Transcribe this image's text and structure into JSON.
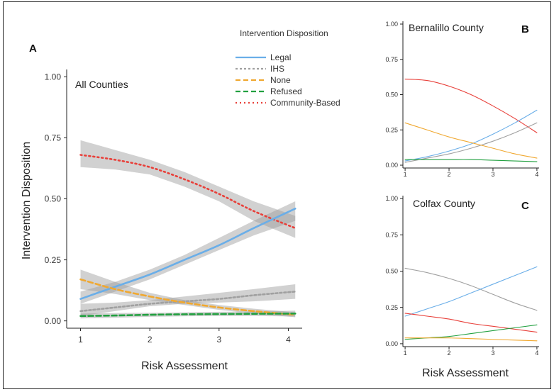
{
  "figure": {
    "legend_title": "Intervention Disposition",
    "legend": [
      {
        "label": "Legal",
        "color": "#6aaee8",
        "dash": "solid"
      },
      {
        "label": "IHS",
        "color": "#a0a0a0",
        "dash": "dotted-short"
      },
      {
        "label": "None",
        "color": "#f0a830",
        "dash": "dashed"
      },
      {
        "label": "Refused",
        "color": "#22a040",
        "dash": "dashed"
      },
      {
        "label": "Community-Based",
        "color": "#e8403a",
        "dash": "dotted"
      }
    ]
  },
  "chart_data": [
    {
      "id": "A",
      "panel_label": "A",
      "type": "line",
      "title": "All Counties",
      "xlabel": "Risk Assessment",
      "ylabel": "Intervention Disposition",
      "xlim": [
        0.8,
        4.2
      ],
      "ylim": [
        -0.03,
        1.03
      ],
      "xticks": [
        "1",
        "2",
        "3",
        "4"
      ],
      "yticks": [
        "0.00",
        "0.25",
        "0.50",
        "0.75",
        "1.00"
      ],
      "x": [
        1,
        1.5,
        2,
        2.5,
        3,
        3.5,
        4.1
      ],
      "series": [
        {
          "name": "Community-Based",
          "color": "#e8403a",
          "dash": "dotted",
          "values": [
            0.68,
            0.66,
            0.63,
            0.58,
            0.52,
            0.45,
            0.38
          ],
          "lower": [
            0.63,
            0.62,
            0.6,
            0.55,
            0.49,
            0.41,
            0.34
          ],
          "upper": [
            0.74,
            0.7,
            0.66,
            0.61,
            0.55,
            0.49,
            0.43
          ]
        },
        {
          "name": "Legal",
          "color": "#6aaee8",
          "dash": "solid",
          "values": [
            0.09,
            0.14,
            0.19,
            0.25,
            0.31,
            0.38,
            0.46
          ],
          "lower": [
            0.07,
            0.12,
            0.17,
            0.23,
            0.29,
            0.35,
            0.41
          ],
          "upper": [
            0.12,
            0.16,
            0.21,
            0.27,
            0.34,
            0.41,
            0.49
          ]
        },
        {
          "name": "IHS",
          "color": "#a0a0a0",
          "dash": "dotted-short",
          "values": [
            0.04,
            0.055,
            0.07,
            0.08,
            0.09,
            0.105,
            0.12
          ],
          "lower": [
            0.02,
            0.04,
            0.06,
            0.07,
            0.075,
            0.08,
            0.09
          ],
          "upper": [
            0.07,
            0.075,
            0.085,
            0.1,
            0.115,
            0.13,
            0.15
          ]
        },
        {
          "name": "None",
          "color": "#f0a830",
          "dash": "dashed",
          "values": [
            0.17,
            0.13,
            0.1,
            0.075,
            0.055,
            0.04,
            0.025
          ],
          "lower": [
            0.13,
            0.11,
            0.085,
            0.065,
            0.045,
            0.03,
            0.015
          ],
          "upper": [
            0.21,
            0.16,
            0.115,
            0.085,
            0.065,
            0.05,
            0.035
          ]
        },
        {
          "name": "Refused",
          "color": "#22a040",
          "dash": "dashed",
          "values": [
            0.02,
            0.022,
            0.025,
            0.027,
            0.028,
            0.029,
            0.03
          ],
          "lower": [
            0.01,
            0.013,
            0.017,
            0.019,
            0.02,
            0.02,
            0.018
          ],
          "upper": [
            0.03,
            0.032,
            0.033,
            0.035,
            0.037,
            0.038,
            0.042
          ]
        }
      ]
    },
    {
      "id": "B",
      "panel_label": "B",
      "type": "line",
      "title": "Bernalillo County",
      "xlabel": "",
      "xlim": [
        0.95,
        4.05
      ],
      "ylim": [
        -0.02,
        1.02
      ],
      "xticks": [
        "1",
        "2",
        "3",
        "4"
      ],
      "yticks": [
        "0.00",
        "0.25",
        "0.50",
        "0.75",
        "1.00"
      ],
      "x": [
        1,
        1.5,
        2,
        2.5,
        3,
        3.5,
        4
      ],
      "series": [
        {
          "name": "Community-Based",
          "color": "#e8403a",
          "values": [
            0.61,
            0.6,
            0.56,
            0.5,
            0.42,
            0.33,
            0.23
          ]
        },
        {
          "name": "Legal",
          "color": "#6aaee8",
          "values": [
            0.03,
            0.06,
            0.1,
            0.15,
            0.22,
            0.3,
            0.39
          ]
        },
        {
          "name": "IHS",
          "color": "#a0a0a0",
          "values": [
            0.02,
            0.05,
            0.08,
            0.12,
            0.17,
            0.23,
            0.3
          ]
        },
        {
          "name": "None",
          "color": "#f0a830",
          "values": [
            0.3,
            0.25,
            0.2,
            0.16,
            0.12,
            0.08,
            0.05
          ]
        },
        {
          "name": "Refused",
          "color": "#22a040",
          "values": [
            0.04,
            0.04,
            0.04,
            0.04,
            0.035,
            0.03,
            0.025
          ]
        }
      ]
    },
    {
      "id": "C",
      "panel_label": "C",
      "type": "line",
      "title": "Colfax County",
      "xlabel": "Risk Assessment",
      "xlim": [
        0.95,
        4.05
      ],
      "ylim": [
        -0.02,
        1.02
      ],
      "xticks": [
        "1",
        "2",
        "3",
        "4"
      ],
      "yticks": [
        "0.00",
        "0.25",
        "0.50",
        "0.75",
        "1.00"
      ],
      "x": [
        1,
        1.5,
        2,
        2.5,
        3,
        3.5,
        4
      ],
      "series": [
        {
          "name": "IHS",
          "color": "#a0a0a0",
          "values": [
            0.52,
            0.49,
            0.45,
            0.4,
            0.34,
            0.28,
            0.23
          ]
        },
        {
          "name": "Legal",
          "color": "#6aaee8",
          "values": [
            0.19,
            0.24,
            0.29,
            0.35,
            0.41,
            0.47,
            0.53
          ]
        },
        {
          "name": "Community-Based",
          "color": "#e8403a",
          "values": [
            0.21,
            0.19,
            0.17,
            0.14,
            0.12,
            0.1,
            0.08
          ]
        },
        {
          "name": "Refused",
          "color": "#22a040",
          "values": [
            0.03,
            0.04,
            0.05,
            0.07,
            0.09,
            0.11,
            0.13
          ]
        },
        {
          "name": "None",
          "color": "#f0a830",
          "values": [
            0.04,
            0.04,
            0.04,
            0.035,
            0.03,
            0.025,
            0.02
          ]
        }
      ]
    }
  ]
}
